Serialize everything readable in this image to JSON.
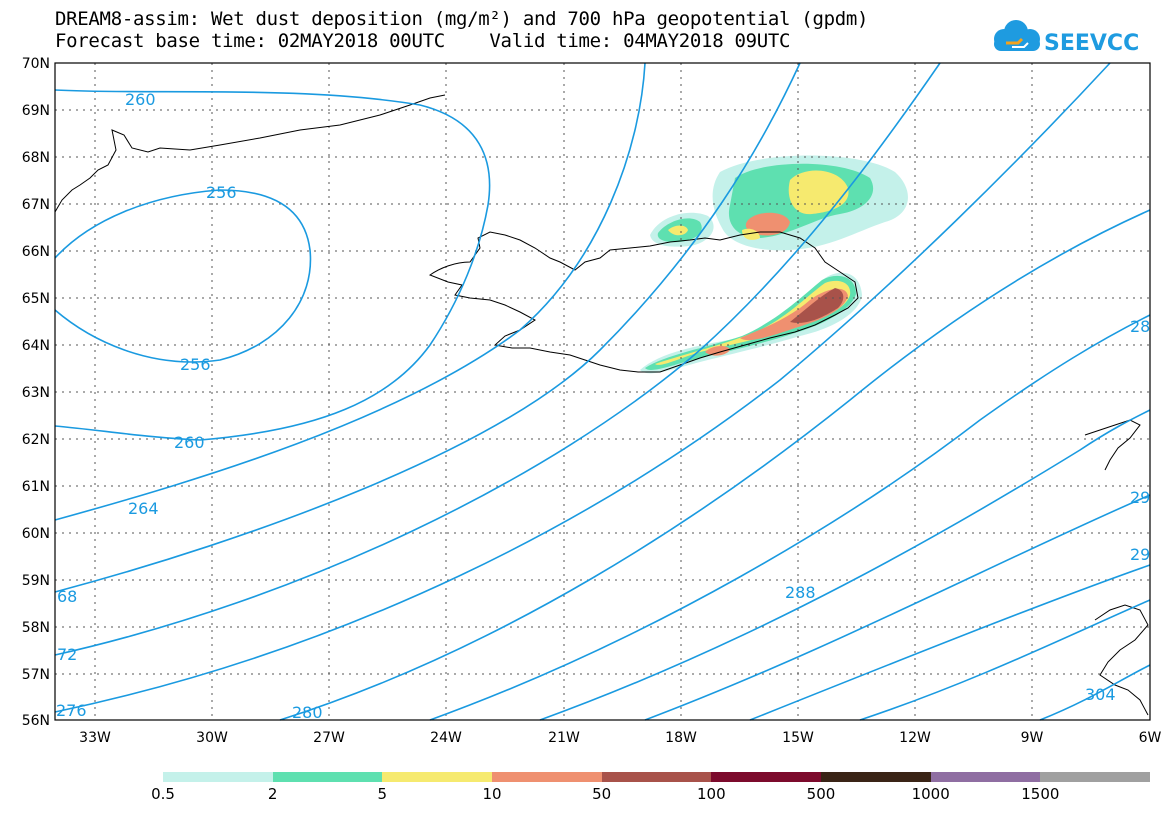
{
  "title_line1": "DREAM8-assim: Wet dust deposition (mg/m²) and 700 hPa geopotential (gpdm)",
  "title_line2": "Forecast base time: 02MAY2018 00UTC    Valid time: 04MAY2018 09UTC",
  "logo_text": "SEEVCCC",
  "lat_labels": [
    "70N",
    "69N",
    "68N",
    "67N",
    "66N",
    "65N",
    "64N",
    "63N",
    "62N",
    "61N",
    "60N",
    "59N",
    "58N",
    "57N",
    "56N"
  ],
  "lon_labels": [
    "33W",
    "30W",
    "27W",
    "24W",
    "21W",
    "18W",
    "15W",
    "12W",
    "9W",
    "6W"
  ],
  "contour_labels": [
    "260",
    "256",
    "256",
    "260",
    "264",
    "68",
    "72",
    "276",
    "280",
    "288",
    "28",
    "29",
    "29",
    "304"
  ],
  "legend": {
    "colors": [
      "#c4f1ea",
      "#5ee0b0",
      "#f6ea6f",
      "#ef9070",
      "#a8524a",
      "#7c0a2c",
      "#3a2416",
      "#8f6ea2",
      "#a0a0a0"
    ],
    "labels": [
      "0.5",
      "2",
      "5",
      "10",
      "50",
      "100",
      "500",
      "1000",
      "1500"
    ]
  },
  "colors": {
    "contour": "#1a9ae0",
    "coast": "#000000"
  }
}
